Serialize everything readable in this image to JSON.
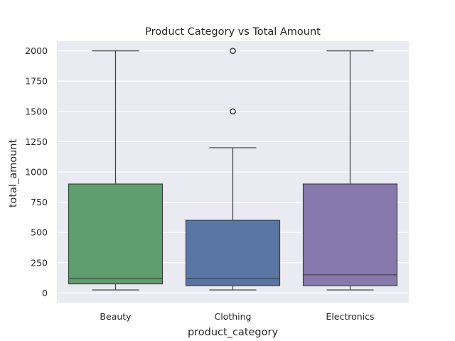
{
  "chart_data": {
    "type": "boxplot",
    "title": "Product Category vs Total Amount",
    "xlabel": "product_category",
    "ylabel": "total_amount",
    "ylim": [
      -80,
      2080
    ],
    "yticks": [
      0,
      250,
      500,
      750,
      1000,
      1250,
      1500,
      1750,
      2000
    ],
    "grid": true,
    "background": "#eaeaf2",
    "categories": [
      "Beauty",
      "Clothing",
      "Electronics"
    ],
    "boxes": [
      {
        "category": "Beauty",
        "color": "#5f9e6e",
        "whisker_low": 25,
        "q1": 75,
        "median": 120,
        "q3": 900,
        "whisker_high": 2000,
        "outliers": []
      },
      {
        "category": "Clothing",
        "color": "#5975a4",
        "whisker_low": 25,
        "q1": 60,
        "median": 120,
        "q3": 600,
        "whisker_high": 1200,
        "outliers": [
          1500,
          2000
        ]
      },
      {
        "category": "Electronics",
        "color": "#8779ad",
        "whisker_low": 25,
        "q1": 60,
        "median": 150,
        "q3": 900,
        "whisker_high": 2000,
        "outliers": []
      }
    ]
  }
}
